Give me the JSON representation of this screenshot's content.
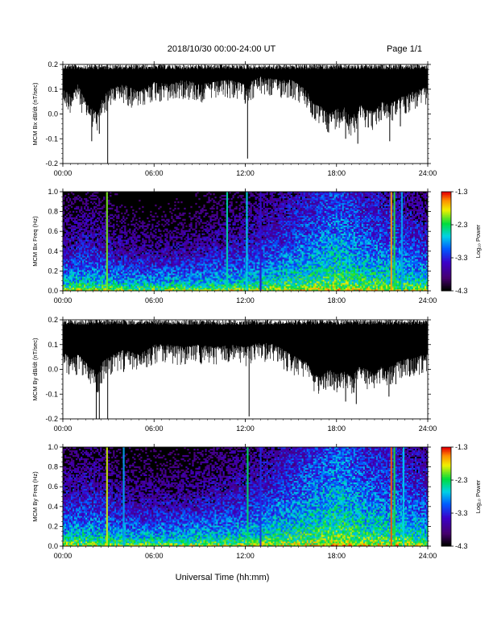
{
  "header": {
    "title": "2018/10/30   00:00-24:00 UT",
    "page": "Page 1/1"
  },
  "x_axis": {
    "title": "Universal Time (hh:mm)",
    "ticks": [
      "00:00",
      "06:00",
      "12:00",
      "18:00",
      "24:00"
    ]
  },
  "colorbar_labels": {
    "ticks": [
      "-1.3",
      "-2.3",
      "-3.3",
      "-4.3"
    ],
    "label": "Log₁₀ Power"
  },
  "chart_data": [
    {
      "id": "bx-dbdt",
      "type": "line",
      "ylabel": "MCM Bx dB/dt (nT/sec)",
      "xlim": [
        0,
        24
      ],
      "ylim": [
        -0.2,
        0.2
      ],
      "yticks": [
        "0.2",
        "0.1",
        "0.0",
        "-0.1",
        "-0.2"
      ],
      "baseline": 0.2,
      "envelope": [
        [
          0,
          0.1
        ],
        [
          0.5,
          0.08
        ],
        [
          1,
          0.12
        ],
        [
          1.5,
          0.05
        ],
        [
          2,
          0.02
        ],
        [
          2.3,
          0.0
        ],
        [
          2.6,
          0.06
        ],
        [
          3,
          0.1
        ],
        [
          4,
          0.12
        ],
        [
          5,
          0.09
        ],
        [
          6,
          0.13
        ],
        [
          7,
          0.12
        ],
        [
          8,
          0.14
        ],
        [
          9,
          0.12
        ],
        [
          10,
          0.13
        ],
        [
          11,
          0.14
        ],
        [
          12,
          0.12
        ],
        [
          13,
          0.15
        ],
        [
          14,
          0.14
        ],
        [
          15,
          0.14
        ],
        [
          16,
          0.1
        ],
        [
          16.5,
          0.04
        ],
        [
          17,
          0.03
        ],
        [
          17.5,
          0.0
        ],
        [
          18,
          0.02
        ],
        [
          18.5,
          0.03
        ],
        [
          19,
          -0.02
        ],
        [
          19.5,
          0.04
        ],
        [
          20,
          0.02
        ],
        [
          20.5,
          0.01
        ],
        [
          21,
          0.05
        ],
        [
          21.5,
          0.04
        ],
        [
          22,
          0.06
        ],
        [
          23,
          0.09
        ],
        [
          24,
          0.11
        ]
      ],
      "spikes": [
        [
          0.4,
          0.04
        ],
        [
          1.9,
          -0.11
        ],
        [
          2.4,
          -0.08
        ],
        [
          2.95,
          -0.2
        ],
        [
          6.4,
          0.05
        ],
        [
          12.15,
          -0.18
        ],
        [
          16.55,
          -0.02
        ],
        [
          16.9,
          -0.01
        ],
        [
          18.6,
          -0.1
        ],
        [
          19.4,
          -0.12
        ],
        [
          21.5,
          -0.11
        ],
        [
          22.2,
          -0.05
        ],
        [
          23.3,
          0.03
        ]
      ]
    },
    {
      "id": "bx-spectrogram",
      "type": "heatmap",
      "ylabel": "MCM Bx Freq (Hz)",
      "xlim": [
        0,
        24
      ],
      "ylim": [
        0,
        1.0
      ],
      "yticks": [
        "1.0",
        "0.8",
        "0.6",
        "0.4",
        "0.2",
        "0.0"
      ],
      "zlim": [
        -4.3,
        -1.3
      ],
      "activity": [
        [
          0,
          0.3
        ],
        [
          2,
          0.35
        ],
        [
          4,
          0.25
        ],
        [
          6,
          0.22
        ],
        [
          8,
          0.25
        ],
        [
          10,
          0.3
        ],
        [
          12,
          0.35
        ],
        [
          14,
          0.45
        ],
        [
          16,
          0.55
        ],
        [
          18,
          0.65
        ],
        [
          20,
          0.55
        ],
        [
          22,
          0.5
        ],
        [
          24,
          0.4
        ]
      ],
      "stripes": [
        [
          2.9,
          0.75
        ],
        [
          10.8,
          0.6
        ],
        [
          12.1,
          0.55
        ],
        [
          13.0,
          0.3
        ],
        [
          21.6,
          0.9
        ],
        [
          21.8,
          0.7
        ],
        [
          22.3,
          0.5
        ]
      ]
    },
    {
      "id": "by-dbdt",
      "type": "line",
      "ylabel": "MCM By dB/dt (nT/sec)",
      "xlim": [
        0,
        24
      ],
      "ylim": [
        -0.2,
        0.2
      ],
      "yticks": [
        "0.2",
        "0.1",
        "0.0",
        "-0.1",
        "-0.2"
      ],
      "baseline": 0.2,
      "envelope": [
        [
          0,
          0.08
        ],
        [
          0.5,
          0.04
        ],
        [
          1,
          0.06
        ],
        [
          1.5,
          0.03
        ],
        [
          2,
          0.0
        ],
        [
          2.3,
          -0.02
        ],
        [
          2.6,
          0.03
        ],
        [
          3,
          0.05
        ],
        [
          4,
          0.08
        ],
        [
          5,
          0.06
        ],
        [
          6,
          0.1
        ],
        [
          7,
          0.1
        ],
        [
          8,
          0.09
        ],
        [
          9,
          0.1
        ],
        [
          10,
          0.09
        ],
        [
          11,
          0.1
        ],
        [
          12,
          0.09
        ],
        [
          13,
          0.11
        ],
        [
          14,
          0.1
        ],
        [
          15,
          0.06
        ],
        [
          16,
          0.03
        ],
        [
          16.5,
          -0.02
        ],
        [
          17,
          -0.03
        ],
        [
          17.5,
          0.0
        ],
        [
          18,
          -0.02
        ],
        [
          18.5,
          -0.01
        ],
        [
          19,
          -0.03
        ],
        [
          19.5,
          0.01
        ],
        [
          20,
          0.0
        ],
        [
          20.5,
          -0.02
        ],
        [
          21,
          0.02
        ],
        [
          21.5,
          0.01
        ],
        [
          22,
          0.03
        ],
        [
          23,
          0.05
        ],
        [
          24,
          0.06
        ]
      ],
      "spikes": [
        [
          0.4,
          -0.02
        ],
        [
          2.2,
          -0.2
        ],
        [
          2.4,
          -0.2
        ],
        [
          2.95,
          -0.2
        ],
        [
          4.0,
          -0.01
        ],
        [
          12.25,
          -0.19
        ],
        [
          16.6,
          -0.05
        ],
        [
          17.0,
          -0.06
        ],
        [
          18.6,
          -0.13
        ],
        [
          19.3,
          -0.14
        ],
        [
          21.45,
          -0.11
        ],
        [
          21.9,
          -0.06
        ],
        [
          23.1,
          -0.01
        ]
      ]
    },
    {
      "id": "by-spectrogram",
      "type": "heatmap",
      "ylabel": "MCM By Freq (Hz)",
      "xlim": [
        0,
        24
      ],
      "ylim": [
        0,
        1.0
      ],
      "yticks": [
        "1.0",
        "0.8",
        "0.6",
        "0.4",
        "0.2",
        "0.0"
      ],
      "zlim": [
        -4.3,
        -1.3
      ],
      "activity": [
        [
          0,
          0.35
        ],
        [
          2,
          0.4
        ],
        [
          4,
          0.3
        ],
        [
          6,
          0.28
        ],
        [
          8,
          0.3
        ],
        [
          10,
          0.35
        ],
        [
          12,
          0.4
        ],
        [
          14,
          0.5
        ],
        [
          16,
          0.6
        ],
        [
          18,
          0.7
        ],
        [
          20,
          0.6
        ],
        [
          22,
          0.55
        ],
        [
          24,
          0.45
        ]
      ],
      "stripes": [
        [
          2.9,
          0.8
        ],
        [
          4.0,
          0.5
        ],
        [
          12.15,
          0.65
        ],
        [
          13.0,
          0.35
        ],
        [
          21.6,
          0.95
        ],
        [
          21.8,
          0.7
        ],
        [
          22.4,
          0.55
        ]
      ]
    }
  ]
}
